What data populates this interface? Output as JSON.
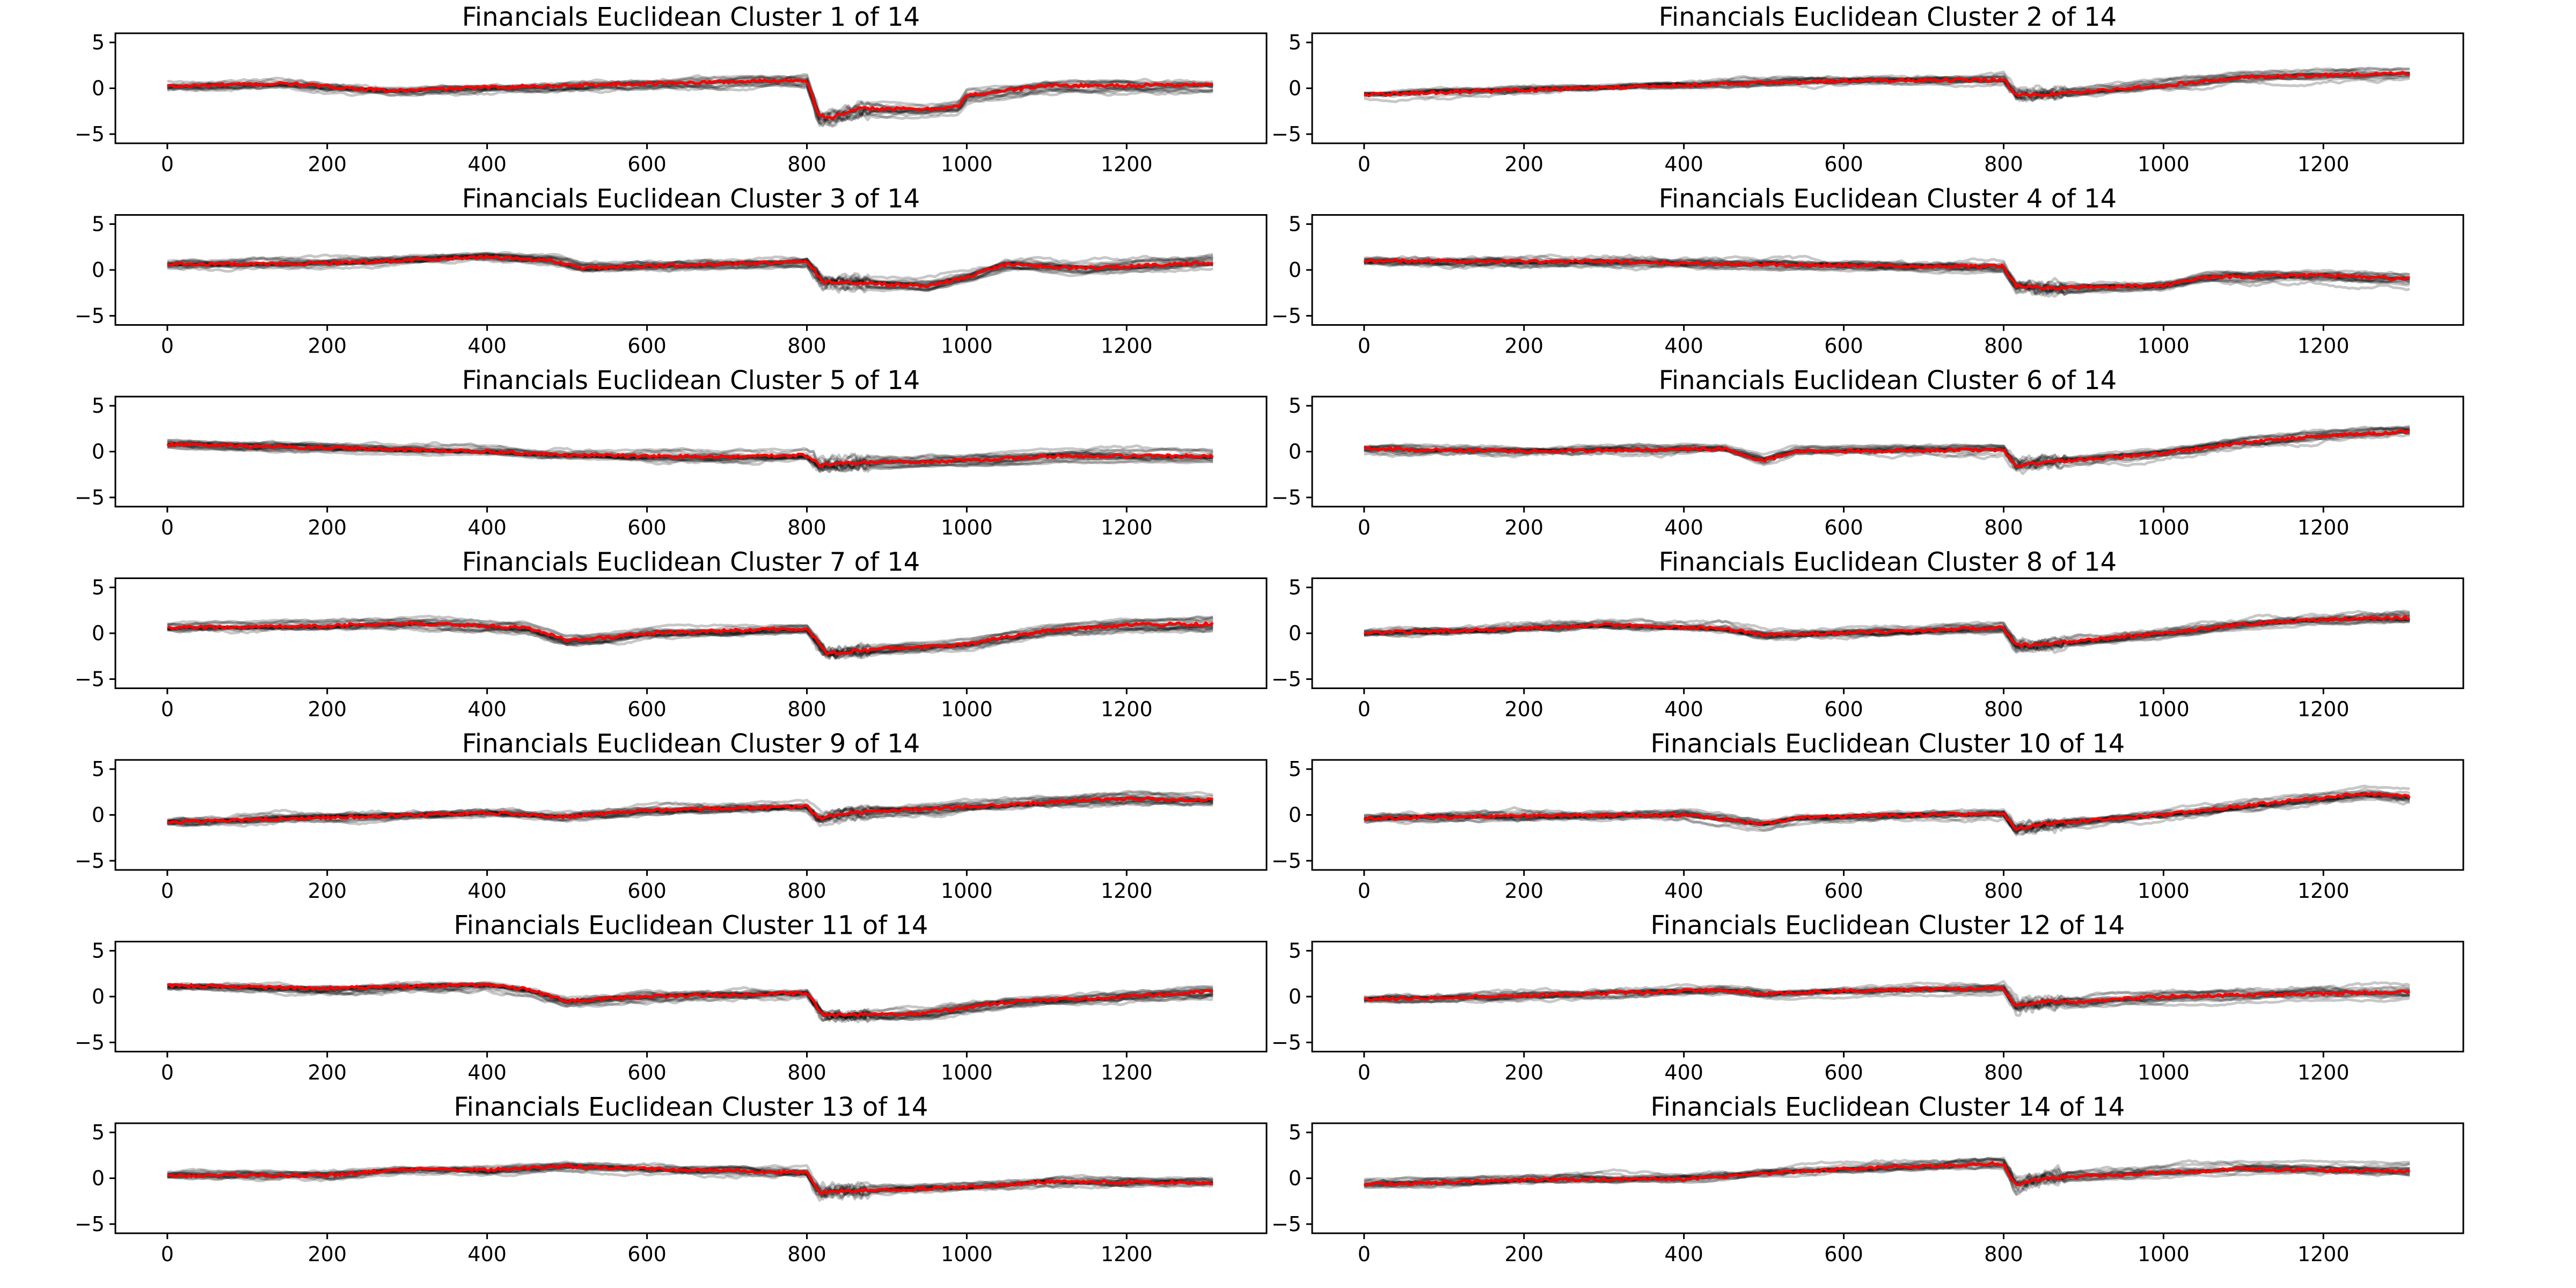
{
  "chart_data": {
    "type": "line",
    "layout": "7 rows x 2 columns of line subplots",
    "axes": {
      "xlim": [
        -65,
        1375
      ],
      "ylim": [
        -6,
        6
      ],
      "xticks": [
        0,
        200,
        400,
        600,
        800,
        1000,
        1200
      ],
      "yticks": [
        5,
        0,
        -5
      ],
      "grid": false,
      "legend": "none"
    },
    "series_style": {
      "members": {
        "color": "#000000",
        "opacity": 0.22,
        "description": "individual stock z-score series (gray)"
      },
      "centroid": {
        "color": "#ff0000",
        "description": "cluster centroid (red)"
      }
    },
    "panels": [
      {
        "title": "Financials Euclidean Cluster 1 of 14",
        "n_members": 14,
        "spread": 0.55,
        "centroid": [
          [
            0,
            0.2
          ],
          [
            150,
            0.5
          ],
          [
            280,
            -0.3
          ],
          [
            400,
            0.1
          ],
          [
            600,
            0.5
          ],
          [
            800,
            0.9
          ],
          [
            815,
            -3.0
          ],
          [
            830,
            -3.2
          ],
          [
            870,
            -2.2
          ],
          [
            950,
            -2.3
          ],
          [
            990,
            -2.0
          ],
          [
            1000,
            -0.8
          ],
          [
            1100,
            0.3
          ],
          [
            1200,
            0.3
          ],
          [
            1310,
            0.4
          ]
        ]
      },
      {
        "title": "Financials Euclidean Cluster 2 of 14",
        "n_members": 14,
        "spread": 0.5,
        "centroid": [
          [
            0,
            -0.7
          ],
          [
            200,
            -0.2
          ],
          [
            400,
            0.3
          ],
          [
            500,
            0.6
          ],
          [
            600,
            0.8
          ],
          [
            800,
            0.9
          ],
          [
            815,
            -0.7
          ],
          [
            830,
            -0.8
          ],
          [
            900,
            -0.4
          ],
          [
            1000,
            0.3
          ],
          [
            1100,
            1.2
          ],
          [
            1200,
            1.4
          ],
          [
            1310,
            1.6
          ]
        ]
      },
      {
        "title": "Financials Euclidean Cluster 3 of 14",
        "n_members": 16,
        "spread": 0.5,
        "centroid": [
          [
            0,
            0.6
          ],
          [
            200,
            0.7
          ],
          [
            400,
            1.4
          ],
          [
            480,
            1.0
          ],
          [
            520,
            0.2
          ],
          [
            600,
            0.4
          ],
          [
            800,
            0.9
          ],
          [
            820,
            -1.3
          ],
          [
            850,
            -1.4
          ],
          [
            950,
            -1.8
          ],
          [
            1000,
            -0.8
          ],
          [
            1050,
            0.6
          ],
          [
            1150,
            0.2
          ],
          [
            1310,
            0.8
          ]
        ]
      },
      {
        "title": "Financials Euclidean Cluster 4 of 14",
        "n_members": 16,
        "spread": 0.45,
        "centroid": [
          [
            0,
            1.0
          ],
          [
            200,
            0.9
          ],
          [
            300,
            0.9
          ],
          [
            500,
            0.6
          ],
          [
            700,
            0.4
          ],
          [
            800,
            0.4
          ],
          [
            815,
            -1.7
          ],
          [
            850,
            -2.0
          ],
          [
            1000,
            -1.7
          ],
          [
            1050,
            -0.8
          ],
          [
            1200,
            -0.6
          ],
          [
            1310,
            -1.0
          ]
        ]
      },
      {
        "title": "Financials Euclidean Cluster 5 of 14",
        "n_members": 16,
        "spread": 0.55,
        "centroid": [
          [
            0,
            0.8
          ],
          [
            200,
            0.4
          ],
          [
            400,
            0.0
          ],
          [
            500,
            -0.4
          ],
          [
            700,
            -0.6
          ],
          [
            800,
            -0.4
          ],
          [
            815,
            -1.5
          ],
          [
            850,
            -1.3
          ],
          [
            1000,
            -1.0
          ],
          [
            1100,
            -0.5
          ],
          [
            1310,
            -0.5
          ]
        ]
      },
      {
        "title": "Financials Euclidean Cluster 6 of 14",
        "n_members": 14,
        "spread": 0.5,
        "centroid": [
          [
            0,
            0.3
          ],
          [
            200,
            0.0
          ],
          [
            450,
            0.3
          ],
          [
            500,
            -1.0
          ],
          [
            540,
            0.0
          ],
          [
            700,
            0.1
          ],
          [
            800,
            0.2
          ],
          [
            815,
            -1.6
          ],
          [
            850,
            -1.2
          ],
          [
            1000,
            -0.2
          ],
          [
            1100,
            1.0
          ],
          [
            1200,
            1.7
          ],
          [
            1310,
            2.2
          ]
        ]
      },
      {
        "title": "Financials Euclidean Cluster 7 of 14",
        "n_members": 16,
        "spread": 0.5,
        "centroid": [
          [
            0,
            0.6
          ],
          [
            200,
            0.8
          ],
          [
            300,
            1.1
          ],
          [
            450,
            0.6
          ],
          [
            500,
            -0.8
          ],
          [
            550,
            -0.5
          ],
          [
            600,
            0.0
          ],
          [
            800,
            0.5
          ],
          [
            825,
            -2.2
          ],
          [
            900,
            -1.7
          ],
          [
            1000,
            -1.2
          ],
          [
            1100,
            0.3
          ],
          [
            1200,
            0.9
          ],
          [
            1310,
            1.0
          ]
        ]
      },
      {
        "title": "Financials Euclidean Cluster 8 of 14",
        "n_members": 16,
        "spread": 0.45,
        "centroid": [
          [
            0,
            0.0
          ],
          [
            200,
            0.5
          ],
          [
            300,
            0.9
          ],
          [
            450,
            0.5
          ],
          [
            500,
            -0.2
          ],
          [
            700,
            0.3
          ],
          [
            800,
            0.6
          ],
          [
            815,
            -1.3
          ],
          [
            850,
            -1.2
          ],
          [
            1000,
            0.0
          ],
          [
            1100,
            1.0
          ],
          [
            1200,
            1.5
          ],
          [
            1310,
            1.7
          ]
        ]
      },
      {
        "title": "Financials Euclidean Cluster 9 of 14",
        "n_members": 16,
        "spread": 0.35,
        "centroid": [
          [
            0,
            -0.8
          ],
          [
            200,
            -0.3
          ],
          [
            400,
            0.2
          ],
          [
            500,
            -0.2
          ],
          [
            600,
            0.5
          ],
          [
            800,
            0.9
          ],
          [
            815,
            -0.4
          ],
          [
            850,
            0.2
          ],
          [
            1000,
            0.9
          ],
          [
            1200,
            1.8
          ],
          [
            1310,
            1.6
          ]
        ]
      },
      {
        "title": "Financials Euclidean Cluster 10 of 14",
        "n_members": 16,
        "spread": 0.45,
        "centroid": [
          [
            0,
            -0.4
          ],
          [
            200,
            -0.1
          ],
          [
            400,
            0.0
          ],
          [
            500,
            -1.0
          ],
          [
            550,
            -0.2
          ],
          [
            700,
            0.0
          ],
          [
            800,
            0.2
          ],
          [
            815,
            -1.5
          ],
          [
            850,
            -1.0
          ],
          [
            1000,
            0.0
          ],
          [
            1100,
            1.0
          ],
          [
            1250,
            2.3
          ],
          [
            1310,
            2.0
          ]
        ]
      },
      {
        "title": "Financials Euclidean Cluster 11 of 14",
        "n_members": 16,
        "spread": 0.5,
        "centroid": [
          [
            0,
            1.2
          ],
          [
            200,
            0.9
          ],
          [
            400,
            1.3
          ],
          [
            450,
            0.8
          ],
          [
            500,
            -0.5
          ],
          [
            600,
            0.0
          ],
          [
            700,
            0.2
          ],
          [
            800,
            0.4
          ],
          [
            820,
            -2.0
          ],
          [
            900,
            -2.0
          ],
          [
            950,
            -1.8
          ],
          [
            1050,
            -0.6
          ],
          [
            1200,
            0.0
          ],
          [
            1310,
            0.6
          ]
        ]
      },
      {
        "title": "Financials Euclidean Cluster 12 of 14",
        "n_members": 14,
        "spread": 0.6,
        "centroid": [
          [
            0,
            -0.3
          ],
          [
            200,
            0.1
          ],
          [
            400,
            0.6
          ],
          [
            450,
            0.7
          ],
          [
            500,
            0.3
          ],
          [
            600,
            0.6
          ],
          [
            800,
            0.9
          ],
          [
            815,
            -1.0
          ],
          [
            850,
            -0.6
          ],
          [
            900,
            -0.6
          ],
          [
            1000,
            0.0
          ],
          [
            1310,
            0.5
          ]
        ]
      },
      {
        "title": "Financials Euclidean Cluster 13 of 14",
        "n_members": 14,
        "spread": 0.55,
        "centroid": [
          [
            0,
            0.3
          ],
          [
            200,
            0.3
          ],
          [
            300,
            1.0
          ],
          [
            400,
            0.9
          ],
          [
            500,
            1.3
          ],
          [
            600,
            1.0
          ],
          [
            800,
            0.6
          ],
          [
            815,
            -1.6
          ],
          [
            850,
            -1.4
          ],
          [
            1000,
            -1.0
          ],
          [
            1100,
            -0.4
          ],
          [
            1310,
            -0.5
          ]
        ]
      },
      {
        "title": "Financials Euclidean Cluster 14 of 14",
        "n_members": 14,
        "spread": 0.55,
        "centroid": [
          [
            0,
            -0.7
          ],
          [
            200,
            -0.2
          ],
          [
            400,
            -0.1
          ],
          [
            500,
            0.5
          ],
          [
            600,
            1.0
          ],
          [
            800,
            1.6
          ],
          [
            815,
            -0.8
          ],
          [
            850,
            0.0
          ],
          [
            950,
            0.4
          ],
          [
            1100,
            1.0
          ],
          [
            1250,
            0.8
          ],
          [
            1310,
            0.7
          ]
        ]
      }
    ]
  }
}
